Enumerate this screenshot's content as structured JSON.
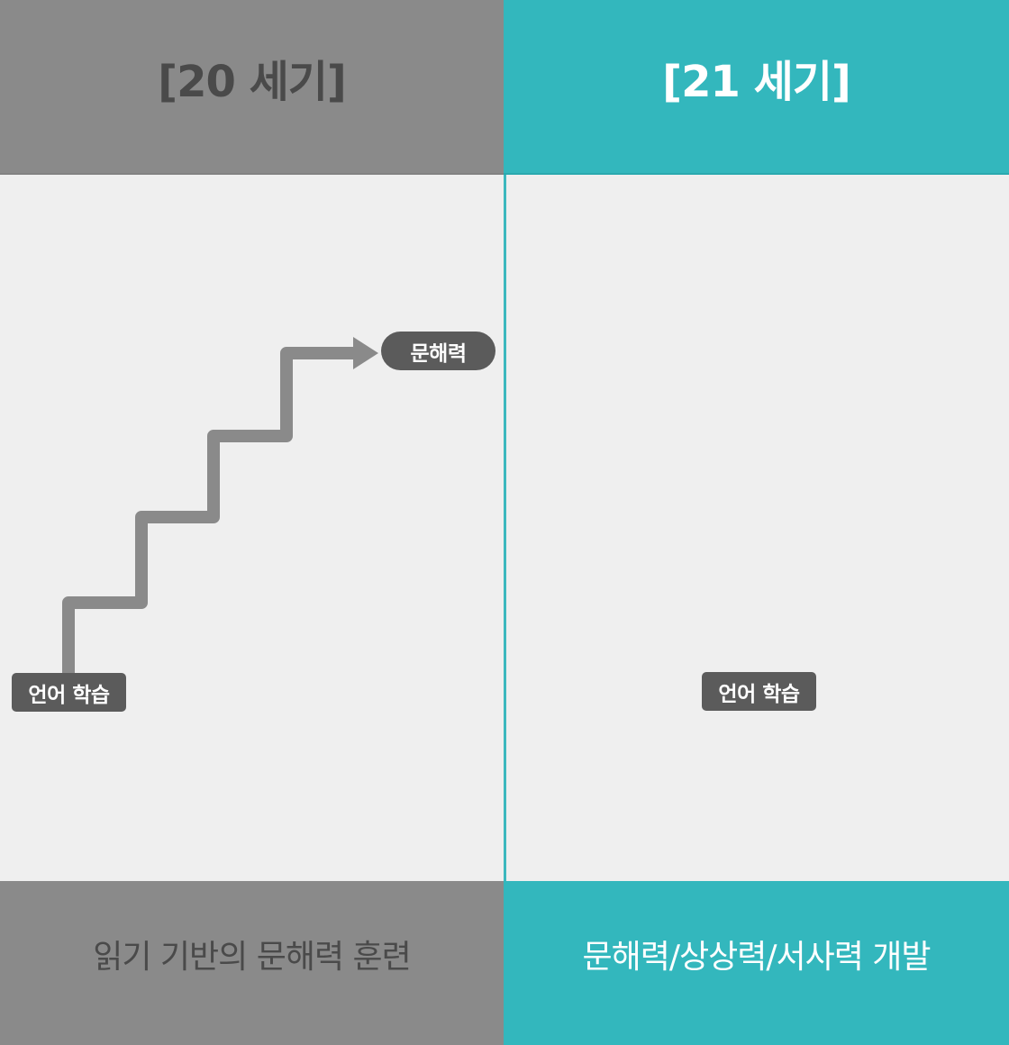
{
  "colors": {
    "left_panel": "#8a8a8a",
    "right_panel": "#33b7bd",
    "label_box": "#5b5b5b",
    "stair_line": "#8a8a8a"
  },
  "left": {
    "header_title": "[20 세기]",
    "start_label": "언어 학습",
    "goal_label": "문해력",
    "footer_text": "읽기 기반의 문해력 훈련"
  },
  "right": {
    "header_title": "[21 세기]",
    "start_label": "언어 학습",
    "footer_text": "문해력/상상력/서사력 개발"
  },
  "diagram": {
    "left_shape": "staircase-arrow",
    "steps": 4,
    "arrow_direction": "right"
  }
}
